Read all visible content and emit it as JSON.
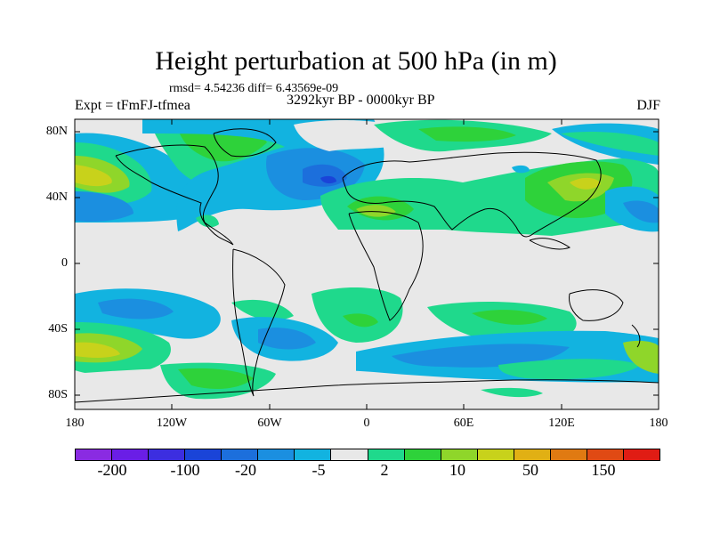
{
  "title": "Height perturbation at 500 hPa (in m)",
  "stats": "rmsd= 4.54236 diff= 6.43569e-09",
  "experiment": "Expt = tFmFJ-tfmea",
  "period": "3292kyr BP - 0000kyr BP",
  "season": "DJF",
  "map": {
    "y_tick_labels": [
      "80N",
      "40N",
      "0",
      "40S",
      "80S"
    ],
    "x_tick_labels": [
      "180",
      "120W",
      "60W",
      "0",
      "60E",
      "120E",
      "180"
    ]
  },
  "colorbar": {
    "colors": [
      "#8a2be2",
      "#6a1ee6",
      "#3c2ee0",
      "#1a44d8",
      "#1c6fdc",
      "#1b8fe0",
      "#12b3e0",
      "#e8e8e8",
      "#1fd98c",
      "#2ed23a",
      "#8fd62a",
      "#c8d21b",
      "#e1b014",
      "#e07a12",
      "#e04a14",
      "#e01c14"
    ],
    "labels": [
      "-200",
      "-100",
      "-20",
      "-5",
      "2",
      "10",
      "50",
      "150"
    ]
  }
}
